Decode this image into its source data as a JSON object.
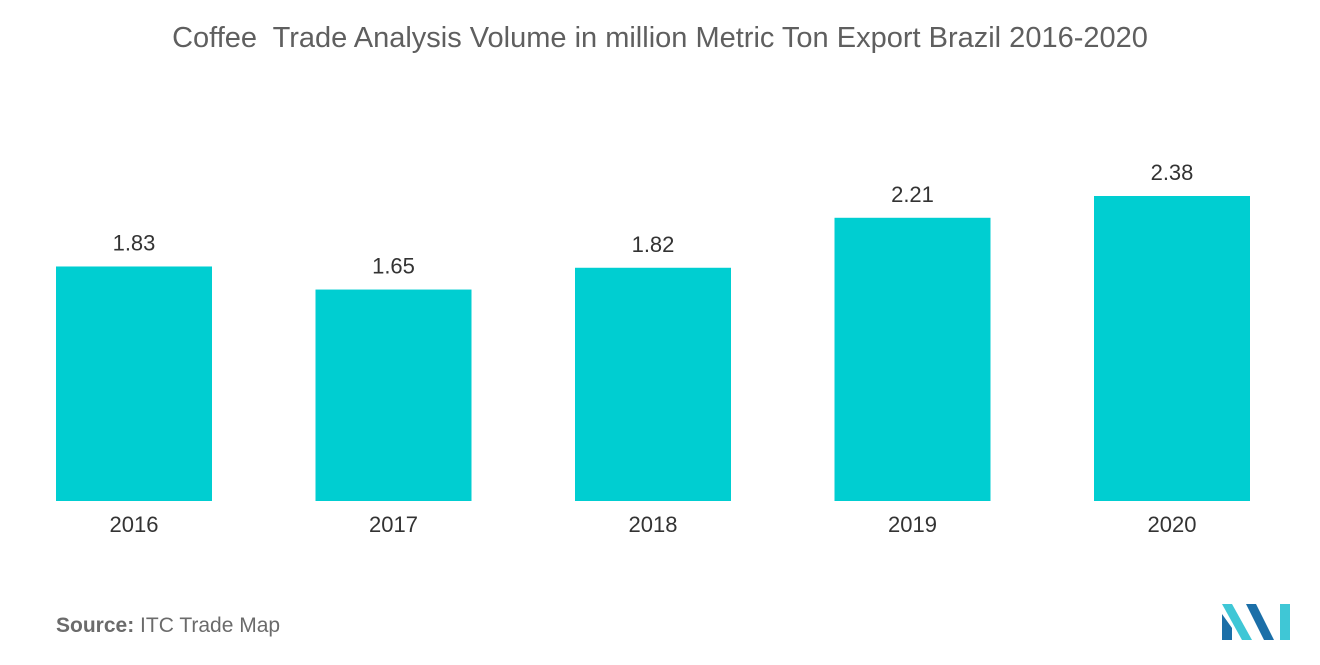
{
  "colors": {
    "bar": "#00CED1",
    "text": "#333333",
    "title": "#5f5f5f",
    "logo_dark": "#1b6fa8",
    "logo_light": "#3fc7d6"
  },
  "chart_data": {
    "type": "bar",
    "title": "Coffee  Trade Analysis Volume in million Metric Ton Export Brazil 2016-2020",
    "categories": [
      "2016",
      "2017",
      "2018",
      "2019",
      "2020"
    ],
    "values": [
      1.83,
      1.65,
      1.82,
      2.21,
      2.38
    ],
    "value_labels": [
      "1.83",
      "1.65",
      "1.82",
      "2.21",
      "2.38"
    ],
    "xlabel": "",
    "ylabel": "",
    "ylim": [
      0,
      2.38
    ],
    "grid": false,
    "legend": "none"
  },
  "source": {
    "label": "Source:",
    "text": "ITC Trade Map"
  },
  "logo": {
    "icon": "mordor-intelligence-logo"
  }
}
